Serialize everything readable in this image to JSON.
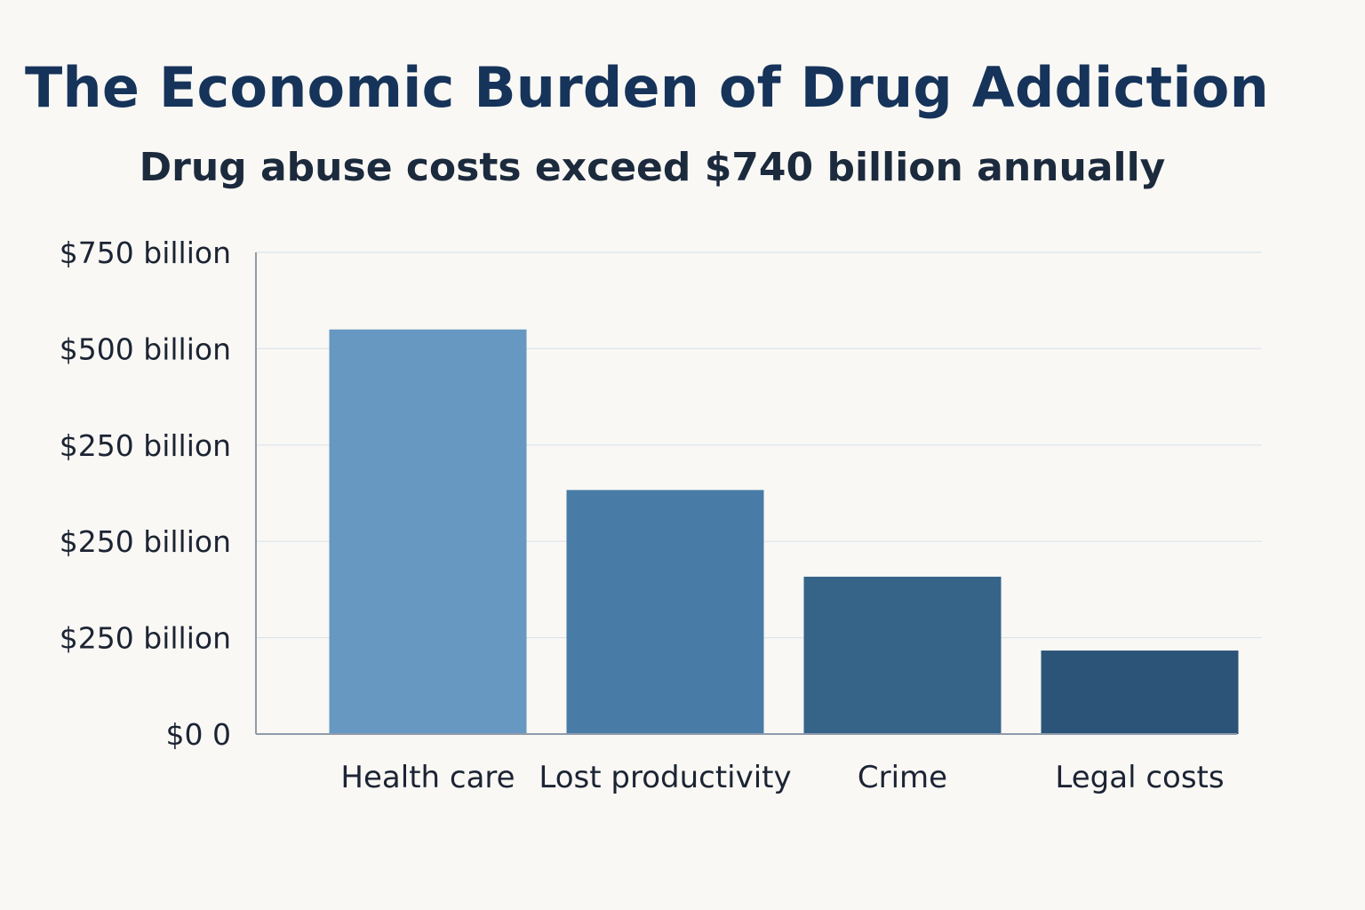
{
  "chart_data": {
    "type": "bar",
    "title": "The Economic Burden of Drug Addiction",
    "subtitle": "Drug abuse costs exceed $740 billion annually",
    "categories": [
      "Health care",
      "Lost productivity",
      "Crime",
      "Legal costs"
    ],
    "values": [
      630,
      380,
      245,
      130
    ],
    "y_tick_labels": [
      "$0 0",
      "$250 billion",
      "$250 billion",
      "$250 billion",
      "$500 billion",
      "$750 billion"
    ],
    "ylim": [
      0,
      750
    ],
    "grid": true,
    "legend": "none",
    "colors": [
      "#6698c1",
      "#487ca6",
      "#366489",
      "#2c5478"
    ],
    "axis_color": "#8f9bab",
    "grid_color": "#dde4ec"
  }
}
